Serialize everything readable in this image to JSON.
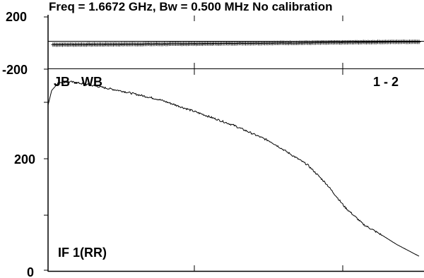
{
  "chart_data": [
    {
      "type": "scatter",
      "title": "Freq = 1.6672 GHz, Bw = 0.500 MHz   No calibration",
      "y_tick_labels": [
        "200",
        "-200"
      ],
      "ylim": [
        -200,
        200
      ],
      "grid": false,
      "series": [
        {
          "x": [
            0.0,
            0.1,
            0.2,
            0.3,
            0.4,
            0.5,
            0.6,
            0.7,
            0.8,
            0.9,
            1.0
          ],
          "values": [
            -12,
            -11,
            -9,
            -7,
            -5,
            -2,
            0,
            2,
            5,
            8,
            10
          ]
        }
      ]
    },
    {
      "type": "line",
      "y_tick_labels": [
        "200",
        "0"
      ],
      "ylim": [
        0,
        430
      ],
      "grid": false,
      "annotations": {
        "baseline": "JB - WB",
        "pair": "1 - 2",
        "channel": "IF 1(RR)"
      },
      "series": [
        {
          "x": [
            0.0,
            0.01,
            0.03,
            0.06,
            0.1,
            0.2,
            0.3,
            0.4,
            0.5,
            0.6,
            0.7,
            0.75,
            0.8,
            0.85,
            0.9,
            0.94,
            1.0
          ],
          "values": [
            353,
            385,
            402,
            403,
            398,
            383,
            365,
            338,
            310,
            275,
            225,
            185,
            135,
            98,
            75,
            55,
            30
          ]
        }
      ]
    }
  ]
}
